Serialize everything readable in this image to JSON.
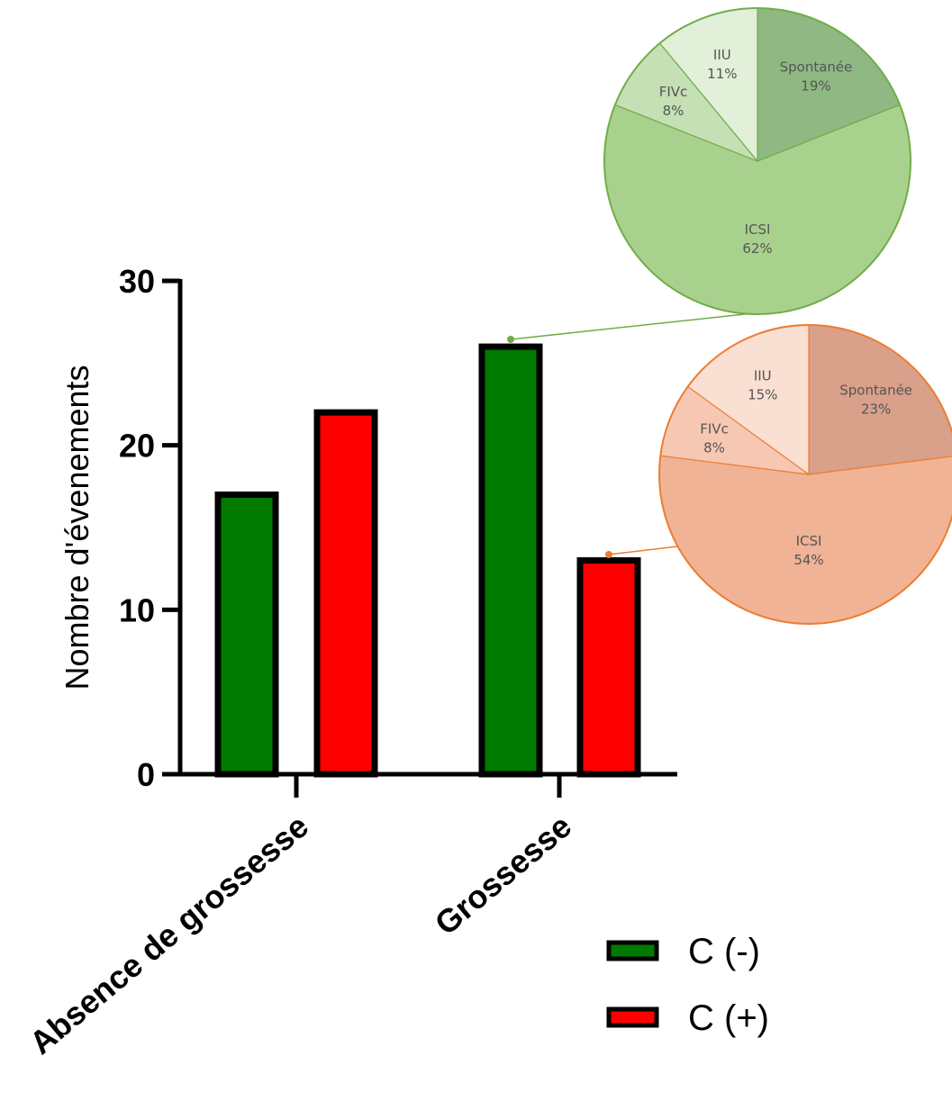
{
  "chart_data": [
    {
      "type": "bar",
      "ylabel": "Nombre d'évenements",
      "ylim": [
        0,
        30
      ],
      "yticks": [
        0,
        10,
        20,
        30
      ],
      "categories": [
        "Absence de grossesse",
        "Grossesse"
      ],
      "series": [
        {
          "name": "C (-)",
          "color": "#007a00",
          "values": [
            17,
            26
          ]
        },
        {
          "name": "C (+)",
          "color": "#ff0000",
          "values": [
            22,
            13
          ]
        }
      ],
      "legend_position": "bottom-right",
      "grid": false
    },
    {
      "type": "pie",
      "linked_to": {
        "category": "Grossesse",
        "series": "C (-)"
      },
      "slices": [
        {
          "label": "Spontanée",
          "value": 19,
          "display": "19%",
          "color": "#8fb882"
        },
        {
          "label": "ICSI",
          "value": 62,
          "display": "62%",
          "color": "#a9d18e"
        },
        {
          "label": "FIVc",
          "value": 8,
          "display": "8%",
          "color": "#c5e0b4"
        },
        {
          "label": "IIU",
          "value": 11,
          "display": "11%",
          "color": "#e2efd9"
        }
      ],
      "border_color": "#70ad47"
    },
    {
      "type": "pie",
      "linked_to": {
        "category": "Grossesse",
        "series": "C (+)"
      },
      "slices": [
        {
          "label": "Spontanée",
          "value": 23,
          "display": "23%",
          "color": "#d9a08a"
        },
        {
          "label": "ICSI",
          "value": 54,
          "display": "54%",
          "color": "#f0b396"
        },
        {
          "label": "FIVc",
          "value": 8,
          "display": "8%",
          "color": "#f6c8b4"
        },
        {
          "label": "IIU",
          "value": 15,
          "display": "15%",
          "color": "#fadfd3"
        }
      ],
      "border_color": "#ed7d31"
    }
  ]
}
